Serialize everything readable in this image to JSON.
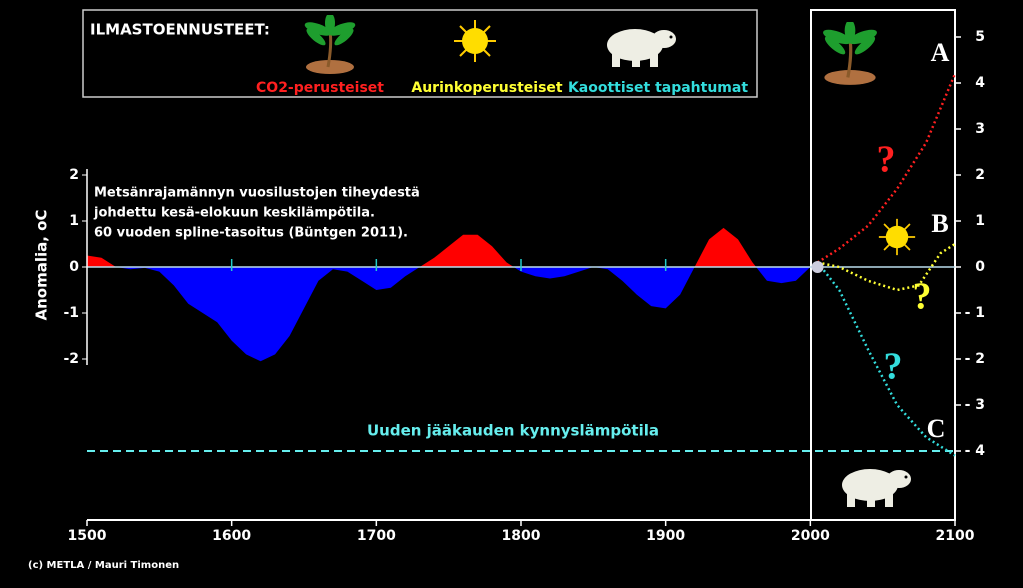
{
  "chart_data": {
    "type": "area",
    "title": "ILMASTOENNUSTEET:",
    "annotation": [
      "Metsänrajamännyn vuosilustojen tiheydestä",
      "johdettu kesä-elokuun keskilämpötila.",
      "60 vuoden spline-tasoitus (Büntgen 2011)."
    ],
    "ylabel": "Anomalia, oC",
    "credit": "(c) METLA / Mauri Timonen",
    "xlim": [
      1500,
      2100
    ],
    "xticks": [
      1500,
      1600,
      1700,
      1800,
      1900,
      2000,
      2100
    ],
    "ylim": [
      -5.5,
      5.5
    ],
    "yticks": [
      2,
      1,
      0,
      -1,
      -2
    ],
    "y2lim": [
      -5.5,
      5.5
    ],
    "y2ticks": [
      5,
      4,
      3,
      2,
      1,
      0,
      {
        "value": -1,
        "label": "- 1"
      },
      {
        "value": -2,
        "label": "- 2"
      },
      {
        "value": -3,
        "label": "- 3"
      },
      {
        "value": -4,
        "label": "- 4"
      }
    ],
    "history": {
      "above_color": "#ff0000",
      "below_color": "#0000ff",
      "x": [
        1500,
        1510,
        1520,
        1530,
        1540,
        1550,
        1560,
        1570,
        1580,
        1590,
        1600,
        1610,
        1620,
        1630,
        1640,
        1650,
        1660,
        1670,
        1680,
        1690,
        1700,
        1710,
        1720,
        1730,
        1740,
        1750,
        1760,
        1770,
        1780,
        1790,
        1800,
        1810,
        1820,
        1830,
        1840,
        1850,
        1860,
        1870,
        1880,
        1890,
        1900,
        1910,
        1920,
        1930,
        1940,
        1950,
        1960,
        1970,
        1980,
        1990,
        2000
      ],
      "values": [
        0.25,
        0.2,
        0.0,
        -0.05,
        -0.02,
        -0.1,
        -0.4,
        -0.8,
        -1.0,
        -1.2,
        -1.6,
        -1.9,
        -2.05,
        -1.9,
        -1.5,
        -0.9,
        -0.3,
        -0.05,
        -0.1,
        -0.3,
        -0.5,
        -0.45,
        -0.2,
        0.0,
        0.2,
        0.45,
        0.7,
        0.7,
        0.45,
        0.1,
        -0.1,
        -0.2,
        -0.25,
        -0.2,
        -0.1,
        0.0,
        -0.05,
        -0.3,
        -0.6,
        -0.85,
        -0.9,
        -0.6,
        0.0,
        0.6,
        0.85,
        0.6,
        0.1,
        -0.3,
        -0.35,
        -0.3,
        0.0
      ]
    },
    "series": [
      {
        "name": "CO2-perusteiset",
        "color": "#ff2020",
        "axis": "y2",
        "x": [
          2005,
          2020,
          2040,
          2060,
          2080,
          2100
        ],
        "values": [
          0.1,
          0.4,
          0.9,
          1.7,
          2.7,
          4.2
        ]
      },
      {
        "name": "Aurinkoperusteiset",
        "color": "#ffff33",
        "axis": "y2",
        "x": [
          2005,
          2020,
          2040,
          2060,
          2075,
          2090,
          2100
        ],
        "values": [
          0.1,
          0.0,
          -0.3,
          -0.5,
          -0.4,
          0.3,
          0.5
        ]
      },
      {
        "name": "Kaoottiset tapahtumat",
        "color": "#33dddd",
        "axis": "y2",
        "x": [
          2005,
          2020,
          2040,
          2060,
          2080,
          2100
        ],
        "values": [
          0.1,
          -0.5,
          -1.8,
          -3.0,
          -3.7,
          -4.1
        ]
      }
    ],
    "reference_line": {
      "value": -4,
      "label": "Uuden jääkauden kynnyslämpötila",
      "color": "#66eeee"
    },
    "scenario_labels": [
      "A",
      "B",
      "C"
    ],
    "question_marks": [
      "?",
      "?",
      "?"
    ]
  }
}
